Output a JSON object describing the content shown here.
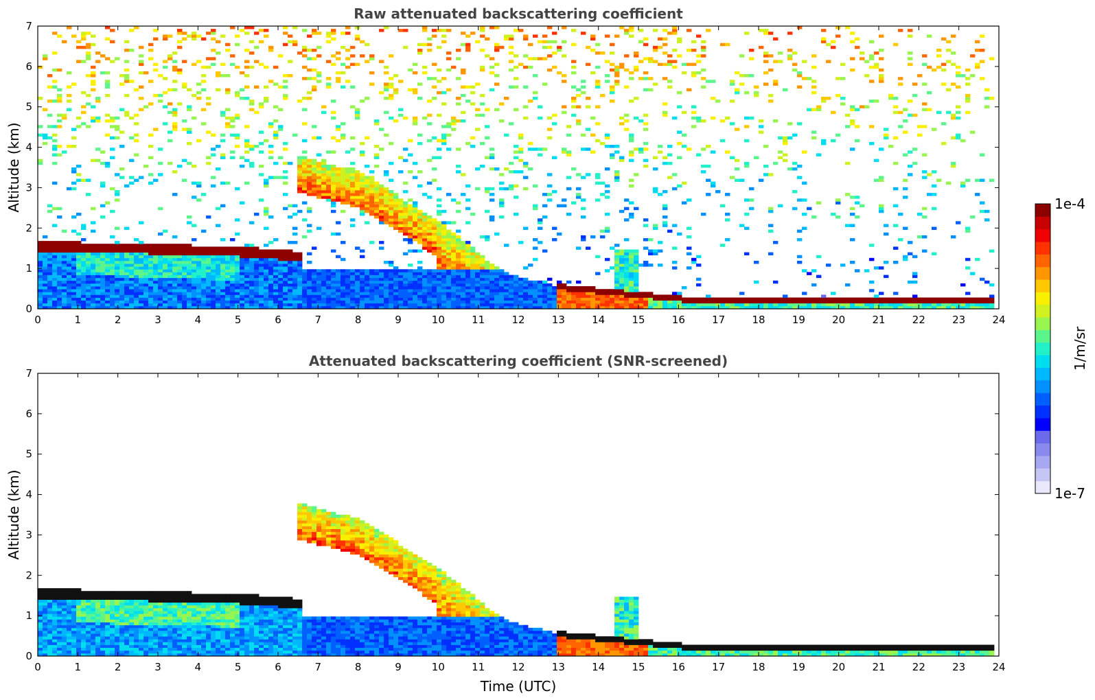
{
  "chart_data": [
    {
      "type": "heatmap",
      "title": "Raw attenuated backscattering coefficient",
      "xlabel": "",
      "ylabel": "Altitude (km)",
      "xlim": [
        0,
        24
      ],
      "ylim": [
        0,
        7
      ],
      "xticks": [
        0,
        1,
        2,
        3,
        4,
        5,
        6,
        7,
        8,
        9,
        10,
        11,
        12,
        13,
        14,
        15,
        16,
        17,
        18,
        19,
        20,
        21,
        22,
        23,
        24
      ],
      "yticks": [
        0,
        1,
        2,
        3,
        4,
        5,
        6,
        7
      ],
      "grid": false,
      "features": {
        "boundary_layer_top_km": [
          [
            0,
            1.55
          ],
          [
            3,
            1.48
          ],
          [
            5,
            1.42
          ],
          [
            6,
            1.35
          ],
          [
            6.5,
            1.3
          ]
        ],
        "elevated_aerosol_layer_top_km": [
          [
            6.5,
            3.8
          ],
          [
            8,
            3.4
          ],
          [
            9,
            2.8
          ],
          [
            10,
            2.2
          ],
          [
            11,
            1.4
          ],
          [
            11.5,
            1.0
          ],
          [
            12,
            0.8
          ],
          [
            13,
            0.55
          ],
          [
            14,
            0.45
          ],
          [
            15,
            0.35
          ],
          [
            16,
            0.25
          ],
          [
            17,
            0.18
          ],
          [
            24,
            0.2
          ]
        ],
        "noise_region_top_km": 7
      }
    },
    {
      "type": "heatmap",
      "title": "Attenuated backscattering coefficient (SNR-screened)",
      "xlabel": "Time (UTC)",
      "ylabel": "Altitude (km)",
      "xlim": [
        0,
        24
      ],
      "ylim": [
        0,
        7
      ],
      "xticks": [
        0,
        1,
        2,
        3,
        4,
        5,
        6,
        7,
        8,
        9,
        10,
        11,
        12,
        13,
        14,
        15,
        16,
        17,
        18,
        19,
        20,
        21,
        22,
        23,
        24
      ],
      "yticks": [
        0,
        1,
        2,
        3,
        4,
        5,
        6,
        7
      ],
      "grid": false
    }
  ],
  "colorbar": {
    "label": "1/m/sr",
    "max_label": "1e-4",
    "min_label": "1e-7",
    "colors": [
      "#e8e8fa",
      "#c6c6f5",
      "#a8a8f2",
      "#8a8aee",
      "#6a6aea",
      "#0000ff",
      "#0030ff",
      "#0060ff",
      "#0090ff",
      "#00b8ff",
      "#00dcf0",
      "#22f0c8",
      "#5cf58c",
      "#98f550",
      "#d0f020",
      "#f8f000",
      "#ffc800",
      "#ff9600",
      "#ff6400",
      "#ff3200",
      "#f00000",
      "#c80000",
      "#8c0000"
    ]
  }
}
